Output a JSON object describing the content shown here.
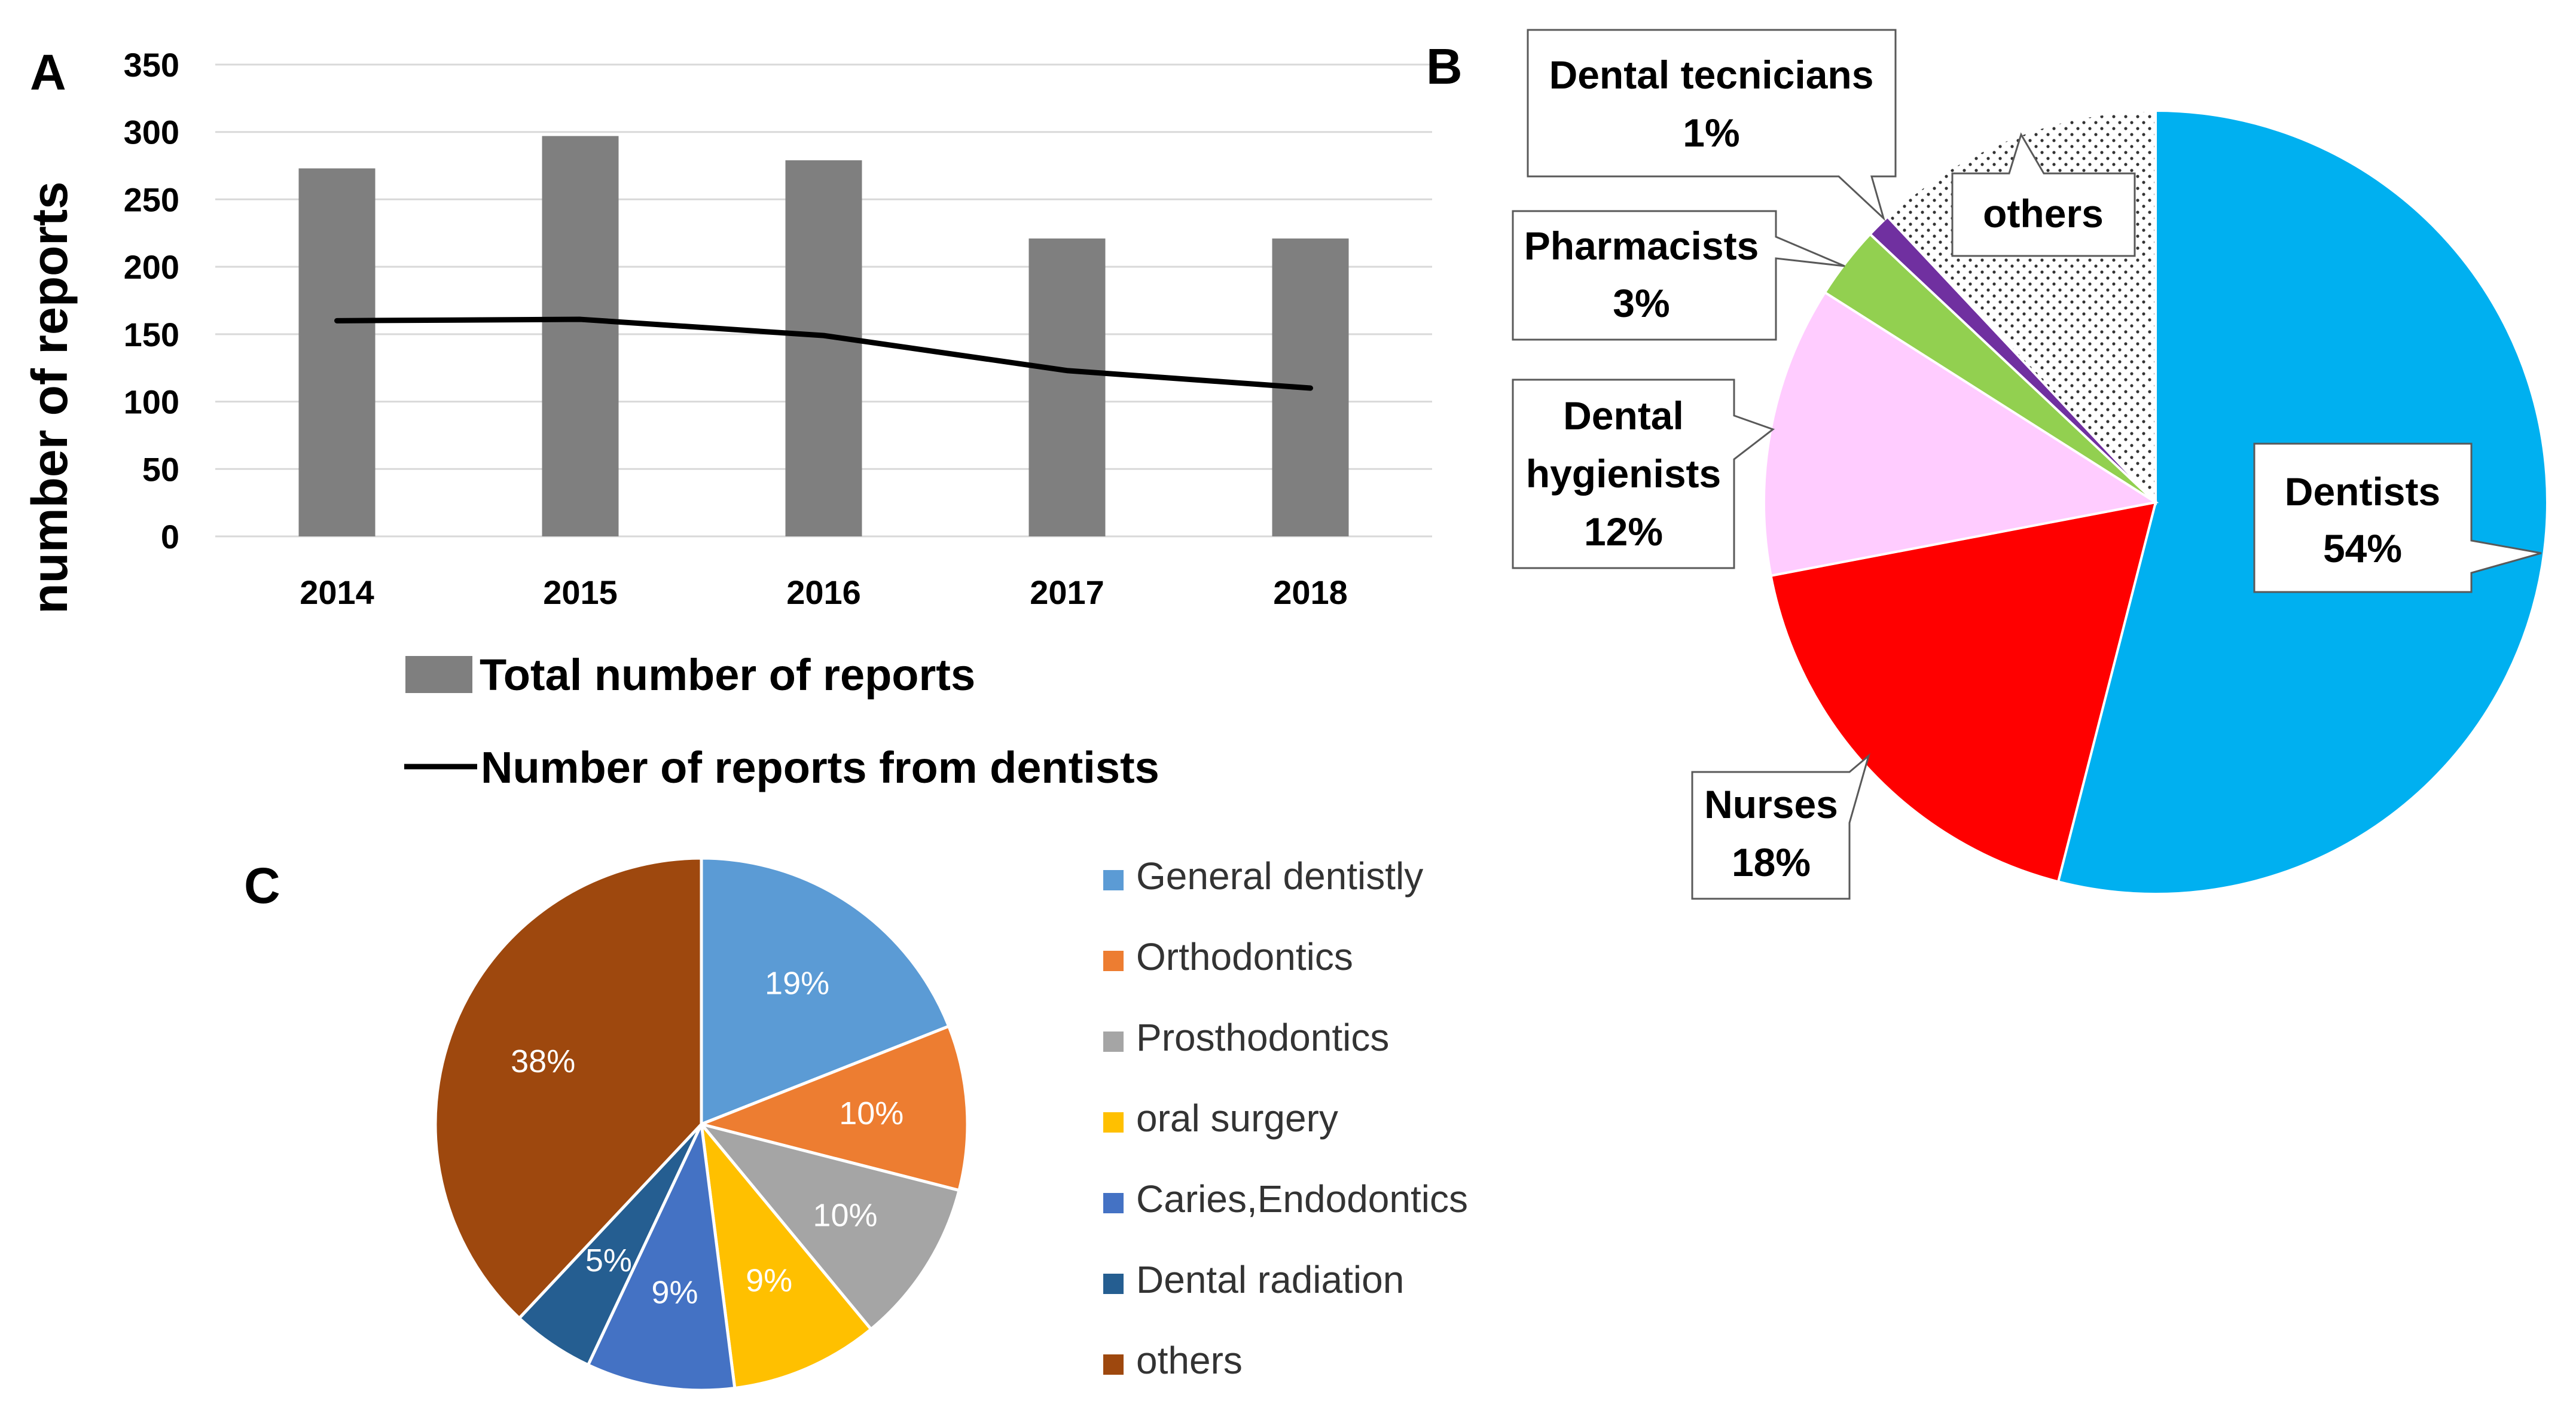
{
  "chart_data": [
    {
      "panel": "A",
      "type": "bar",
      "categories": [
        "2014",
        "2015",
        "2016",
        "2017",
        "2018"
      ],
      "series": [
        {
          "name": "Total number of reports",
          "kind": "bar",
          "color": "#7f7f7f",
          "values": [
            273,
            297,
            279,
            221,
            221
          ]
        },
        {
          "name": "Number of reports from dentists",
          "kind": "line",
          "color": "#000000",
          "values": [
            160,
            161,
            149,
            123,
            110
          ]
        }
      ],
      "ylabel": "number  of  reports",
      "ylim": [
        0,
        350
      ],
      "yticks": [
        "0",
        "50",
        "100",
        "150",
        "200",
        "250",
        "300",
        "350"
      ],
      "grid": true,
      "legend": "bottom"
    },
    {
      "panel": "B",
      "type": "pie",
      "slices": [
        {
          "label": "Dentists",
          "value": 54,
          "pct_label": "54%",
          "color": "#00b0f0"
        },
        {
          "label": "Nurses",
          "value": 18,
          "pct_label": "18%",
          "color": "#ff0000"
        },
        {
          "label": "Dental hygienists",
          "label_lines": [
            "Dental",
            "hygienists"
          ],
          "value": 12,
          "pct_label": "12%",
          "color": "#ffccff"
        },
        {
          "label": "Pharmacists",
          "value": 3,
          "pct_label": "3%",
          "color": "#92d050"
        },
        {
          "label": "Dental tecnicians",
          "value": 1,
          "pct_label": "1%",
          "color": "#7030a0"
        },
        {
          "label": "others",
          "value": 12,
          "pct_label": "",
          "color": "#ffffff",
          "pattern": "dots"
        }
      ]
    },
    {
      "panel": "C",
      "type": "pie",
      "slices": [
        {
          "label": "General dentistly",
          "value": 19,
          "pct_label": "19%",
          "color": "#5b9bd5"
        },
        {
          "label": "Orthodontics",
          "value": 10,
          "pct_label": "10%",
          "color": "#ed7d31"
        },
        {
          "label": "Prosthodontics",
          "value": 10,
          "pct_label": "10%",
          "color": "#a5a5a5"
        },
        {
          "label": "oral surgery",
          "value": 9,
          "pct_label": "9%",
          "color": "#ffc000"
        },
        {
          "label": "Caries,Endodontics",
          "value": 9,
          "pct_label": "9%",
          "color": "#4472c4"
        },
        {
          "label": "Dental radiation",
          "value": 5,
          "pct_label": "5%",
          "color": "#255e91"
        },
        {
          "label": "others",
          "value": 38,
          "pct_label": "38%",
          "color": "#9e480e"
        }
      ],
      "legend": "right"
    }
  ]
}
